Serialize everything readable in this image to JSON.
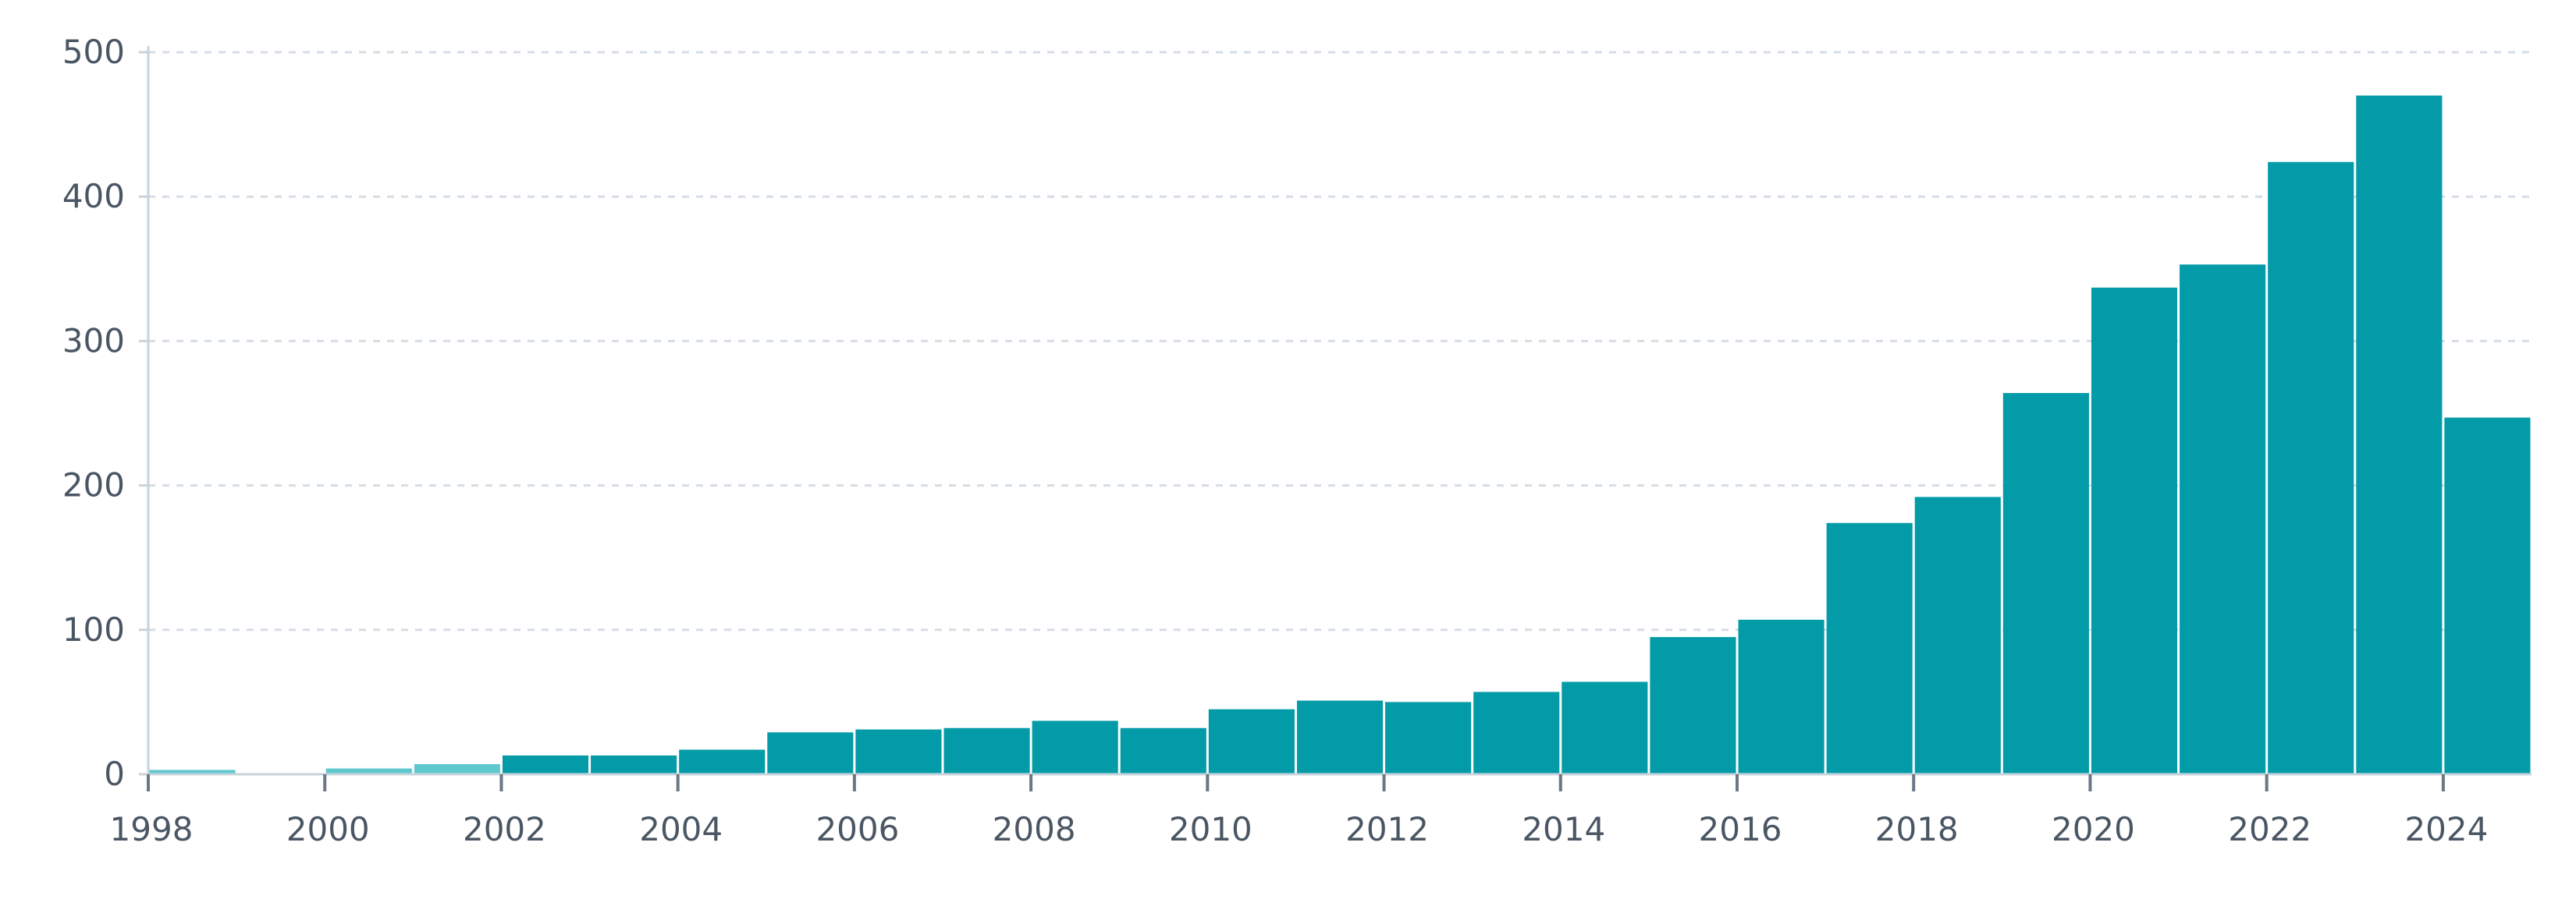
{
  "chart_data": {
    "type": "bar",
    "title": "",
    "xlabel": "",
    "ylabel": "",
    "categories": [
      "1998",
      "1999",
      "2000",
      "2001",
      "2002",
      "2003",
      "2004",
      "2005",
      "2006",
      "2007",
      "2008",
      "2009",
      "2010",
      "2011",
      "2012",
      "2013",
      "2014",
      "2015",
      "2016",
      "2017",
      "2018",
      "2019",
      "2020",
      "2021",
      "2022",
      "2023",
      "2024"
    ],
    "values": [
      3,
      0,
      4,
      7,
      13,
      13,
      17,
      29,
      31,
      32,
      37,
      32,
      45,
      51,
      50,
      57,
      64,
      95,
      107,
      174,
      192,
      264,
      337,
      353,
      424,
      470,
      247
    ],
    "ylim": [
      0,
      500
    ],
    "y_ticks": [
      "0",
      "100",
      "200",
      "300",
      "400",
      "500"
    ],
    "x_tick_labels": [
      "1998",
      "2000",
      "2002",
      "2004",
      "2006",
      "2008",
      "2010",
      "2012",
      "2014",
      "2016",
      "2018",
      "2020",
      "2022",
      "2024"
    ],
    "grid": "horizontal dashed",
    "legend": "none",
    "colors": {
      "bar": "#029ba7",
      "bar_light": "#5fc8cf",
      "bar_edge": "#ffffff",
      "grid": "#d5dde6",
      "axis": "#c8d3dc",
      "tick_text": "#4a5663"
    }
  }
}
